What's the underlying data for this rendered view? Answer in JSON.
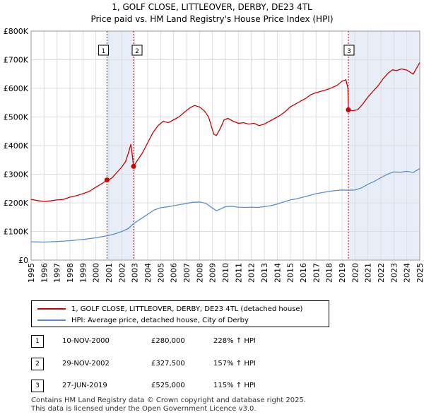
{
  "title_line1": "1, GOLF CLOSE, LITTLEOVER, DERBY, DE23 4TL",
  "title_line2": "Price paid vs. HM Land Registry's House Price Index (HPI)",
  "colors": {
    "property": "#cc0000",
    "hpi": "#5b8fd0",
    "shade": "#e8eef8",
    "marker_line": "#cc0000",
    "grid": "#dddddd"
  },
  "chart_data": {
    "type": "line",
    "title": "Price paid vs. HM Land Registry's House Price Index (HPI)",
    "xlim": [
      1995,
      2025
    ],
    "ylim": [
      0,
      800000
    ],
    "x_ticks": [
      "1995",
      "1996",
      "1997",
      "1998",
      "1999",
      "2000",
      "2001",
      "2002",
      "2003",
      "2004",
      "2005",
      "2006",
      "2007",
      "2008",
      "2009",
      "2010",
      "2011",
      "2012",
      "2013",
      "2014",
      "2015",
      "2016",
      "2017",
      "2018",
      "2019",
      "2020",
      "2021",
      "2022",
      "2023",
      "2024",
      "2025"
    ],
    "y_ticks": [
      {
        "value": 0,
        "label": "£0"
      },
      {
        "value": 100000,
        "label": "£100K"
      },
      {
        "value": 200000,
        "label": "£200K"
      },
      {
        "value": 300000,
        "label": "£300K"
      },
      {
        "value": 400000,
        "label": "£400K"
      },
      {
        "value": 500000,
        "label": "£500K"
      },
      {
        "value": 600000,
        "label": "£600K"
      },
      {
        "value": 700000,
        "label": "£700K"
      },
      {
        "value": 800000,
        "label": "£800K"
      }
    ],
    "shaded_ranges": [
      [
        2000.86,
        2002.91
      ],
      [
        2019.49,
        2025.0
      ]
    ],
    "series": [
      {
        "name": "1, GOLF CLOSE, LITTLEOVER, DERBY, DE23 4TL (detached house)",
        "color": "#cc0000",
        "points": [
          [
            1995.0,
            212000
          ],
          [
            1995.5,
            208000
          ],
          [
            1996.0,
            205000
          ],
          [
            1996.5,
            207000
          ],
          [
            1997.0,
            210000
          ],
          [
            1997.5,
            212000
          ],
          [
            1998.0,
            220000
          ],
          [
            1998.5,
            225000
          ],
          [
            1999.0,
            232000
          ],
          [
            1999.5,
            240000
          ],
          [
            2000.0,
            255000
          ],
          [
            2000.5,
            268000
          ],
          [
            2000.86,
            280000
          ],
          [
            2001.2,
            285000
          ],
          [
            2001.6,
            305000
          ],
          [
            2002.0,
            325000
          ],
          [
            2002.3,
            345000
          ],
          [
            2002.55,
            380000
          ],
          [
            2002.7,
            405000
          ],
          [
            2002.8,
            370000
          ],
          [
            2002.91,
            327500
          ],
          [
            2003.2,
            348000
          ],
          [
            2003.6,
            375000
          ],
          [
            2004.0,
            410000
          ],
          [
            2004.4,
            445000
          ],
          [
            2004.8,
            470000
          ],
          [
            2005.2,
            485000
          ],
          [
            2005.6,
            480000
          ],
          [
            2006.0,
            490000
          ],
          [
            2006.4,
            500000
          ],
          [
            2006.8,
            515000
          ],
          [
            2007.2,
            530000
          ],
          [
            2007.6,
            540000
          ],
          [
            2008.0,
            535000
          ],
          [
            2008.4,
            520000
          ],
          [
            2008.7,
            500000
          ],
          [
            2008.9,
            470000
          ],
          [
            2009.1,
            440000
          ],
          [
            2009.3,
            435000
          ],
          [
            2009.6,
            460000
          ],
          [
            2009.9,
            490000
          ],
          [
            2010.2,
            495000
          ],
          [
            2010.6,
            485000
          ],
          [
            2011.0,
            478000
          ],
          [
            2011.4,
            480000
          ],
          [
            2011.8,
            475000
          ],
          [
            2012.2,
            478000
          ],
          [
            2012.6,
            470000
          ],
          [
            2013.0,
            475000
          ],
          [
            2013.4,
            485000
          ],
          [
            2013.8,
            495000
          ],
          [
            2014.2,
            505000
          ],
          [
            2014.6,
            518000
          ],
          [
            2015.0,
            535000
          ],
          [
            2015.4,
            545000
          ],
          [
            2015.8,
            555000
          ],
          [
            2016.2,
            565000
          ],
          [
            2016.6,
            578000
          ],
          [
            2017.0,
            585000
          ],
          [
            2017.4,
            590000
          ],
          [
            2017.8,
            595000
          ],
          [
            2018.2,
            602000
          ],
          [
            2018.6,
            610000
          ],
          [
            2019.0,
            625000
          ],
          [
            2019.3,
            630000
          ],
          [
            2019.45,
            600000
          ],
          [
            2019.49,
            525000
          ],
          [
            2019.8,
            522000
          ],
          [
            2020.2,
            525000
          ],
          [
            2020.6,
            545000
          ],
          [
            2021.0,
            570000
          ],
          [
            2021.4,
            590000
          ],
          [
            2021.8,
            610000
          ],
          [
            2022.2,
            635000
          ],
          [
            2022.6,
            655000
          ],
          [
            2022.9,
            665000
          ],
          [
            2023.2,
            662000
          ],
          [
            2023.6,
            668000
          ],
          [
            2024.0,
            664000
          ],
          [
            2024.3,
            655000
          ],
          [
            2024.5,
            650000
          ],
          [
            2024.75,
            670000
          ],
          [
            2025.0,
            690000
          ]
        ]
      },
      {
        "name": "HPI: Average price, detached house, City of Derby",
        "color": "#5b8fd0",
        "points": [
          [
            1995.0,
            64000
          ],
          [
            1995.5,
            63500
          ],
          [
            1996.0,
            63000
          ],
          [
            1996.5,
            64000
          ],
          [
            1997.0,
            65000
          ],
          [
            1997.5,
            66500
          ],
          [
            1998.0,
            68000
          ],
          [
            1998.5,
            70000
          ],
          [
            1999.0,
            72000
          ],
          [
            1999.5,
            75000
          ],
          [
            2000.0,
            78000
          ],
          [
            2000.5,
            82000
          ],
          [
            2000.86,
            85000
          ],
          [
            2001.5,
            92000
          ],
          [
            2002.0,
            100000
          ],
          [
            2002.5,
            110000
          ],
          [
            2002.91,
            127500
          ],
          [
            2003.5,
            145000
          ],
          [
            2004.0,
            160000
          ],
          [
            2004.5,
            175000
          ],
          [
            2005.0,
            183000
          ],
          [
            2005.5,
            186000
          ],
          [
            2006.0,
            190000
          ],
          [
            2006.5,
            194000
          ],
          [
            2007.0,
            198000
          ],
          [
            2007.5,
            202000
          ],
          [
            2008.0,
            203000
          ],
          [
            2008.5,
            198000
          ],
          [
            2009.0,
            182000
          ],
          [
            2009.3,
            172000
          ],
          [
            2009.7,
            180000
          ],
          [
            2010.0,
            187000
          ],
          [
            2010.5,
            188000
          ],
          [
            2011.0,
            185000
          ],
          [
            2011.5,
            184000
          ],
          [
            2012.0,
            185000
          ],
          [
            2012.5,
            184000
          ],
          [
            2013.0,
            187000
          ],
          [
            2013.5,
            190000
          ],
          [
            2014.0,
            196000
          ],
          [
            2014.5,
            203000
          ],
          [
            2015.0,
            210000
          ],
          [
            2015.5,
            214000
          ],
          [
            2016.0,
            220000
          ],
          [
            2016.5,
            226000
          ],
          [
            2017.0,
            232000
          ],
          [
            2017.5,
            236000
          ],
          [
            2018.0,
            240000
          ],
          [
            2018.5,
            243000
          ],
          [
            2019.0,
            245000
          ],
          [
            2019.49,
            244000
          ],
          [
            2020.0,
            245000
          ],
          [
            2020.5,
            252000
          ],
          [
            2021.0,
            265000
          ],
          [
            2021.5,
            275000
          ],
          [
            2022.0,
            288000
          ],
          [
            2022.5,
            300000
          ],
          [
            2023.0,
            308000
          ],
          [
            2023.5,
            307000
          ],
          [
            2024.0,
            310000
          ],
          [
            2024.5,
            306000
          ],
          [
            2025.0,
            320000
          ]
        ]
      }
    ],
    "sales": [
      {
        "id": "1",
        "date": "10-NOV-2000",
        "x": 2000.86,
        "price_value": 280000,
        "price": "£280,000",
        "hpi": "228% ↑ HPI"
      },
      {
        "id": "2",
        "date": "29-NOV-2002",
        "x": 2002.91,
        "price_value": 327500,
        "price": "£327,500",
        "hpi": "157% ↑ HPI"
      },
      {
        "id": "3",
        "date": "27-JUN-2019",
        "x": 2019.49,
        "price_value": 525000,
        "price": "£525,000",
        "hpi": "115% ↑ HPI"
      }
    ]
  },
  "legend": {
    "property_label": "1, GOLF CLOSE, LITTLEOVER, DERBY, DE23 4TL (detached house)",
    "hpi_label": "HPI: Average price, detached house, City of Derby"
  },
  "footer": {
    "line1": "Contains HM Land Registry data © Crown copyright and database right 2025.",
    "line2": "This data is licensed under the Open Government Licence v3.0."
  }
}
